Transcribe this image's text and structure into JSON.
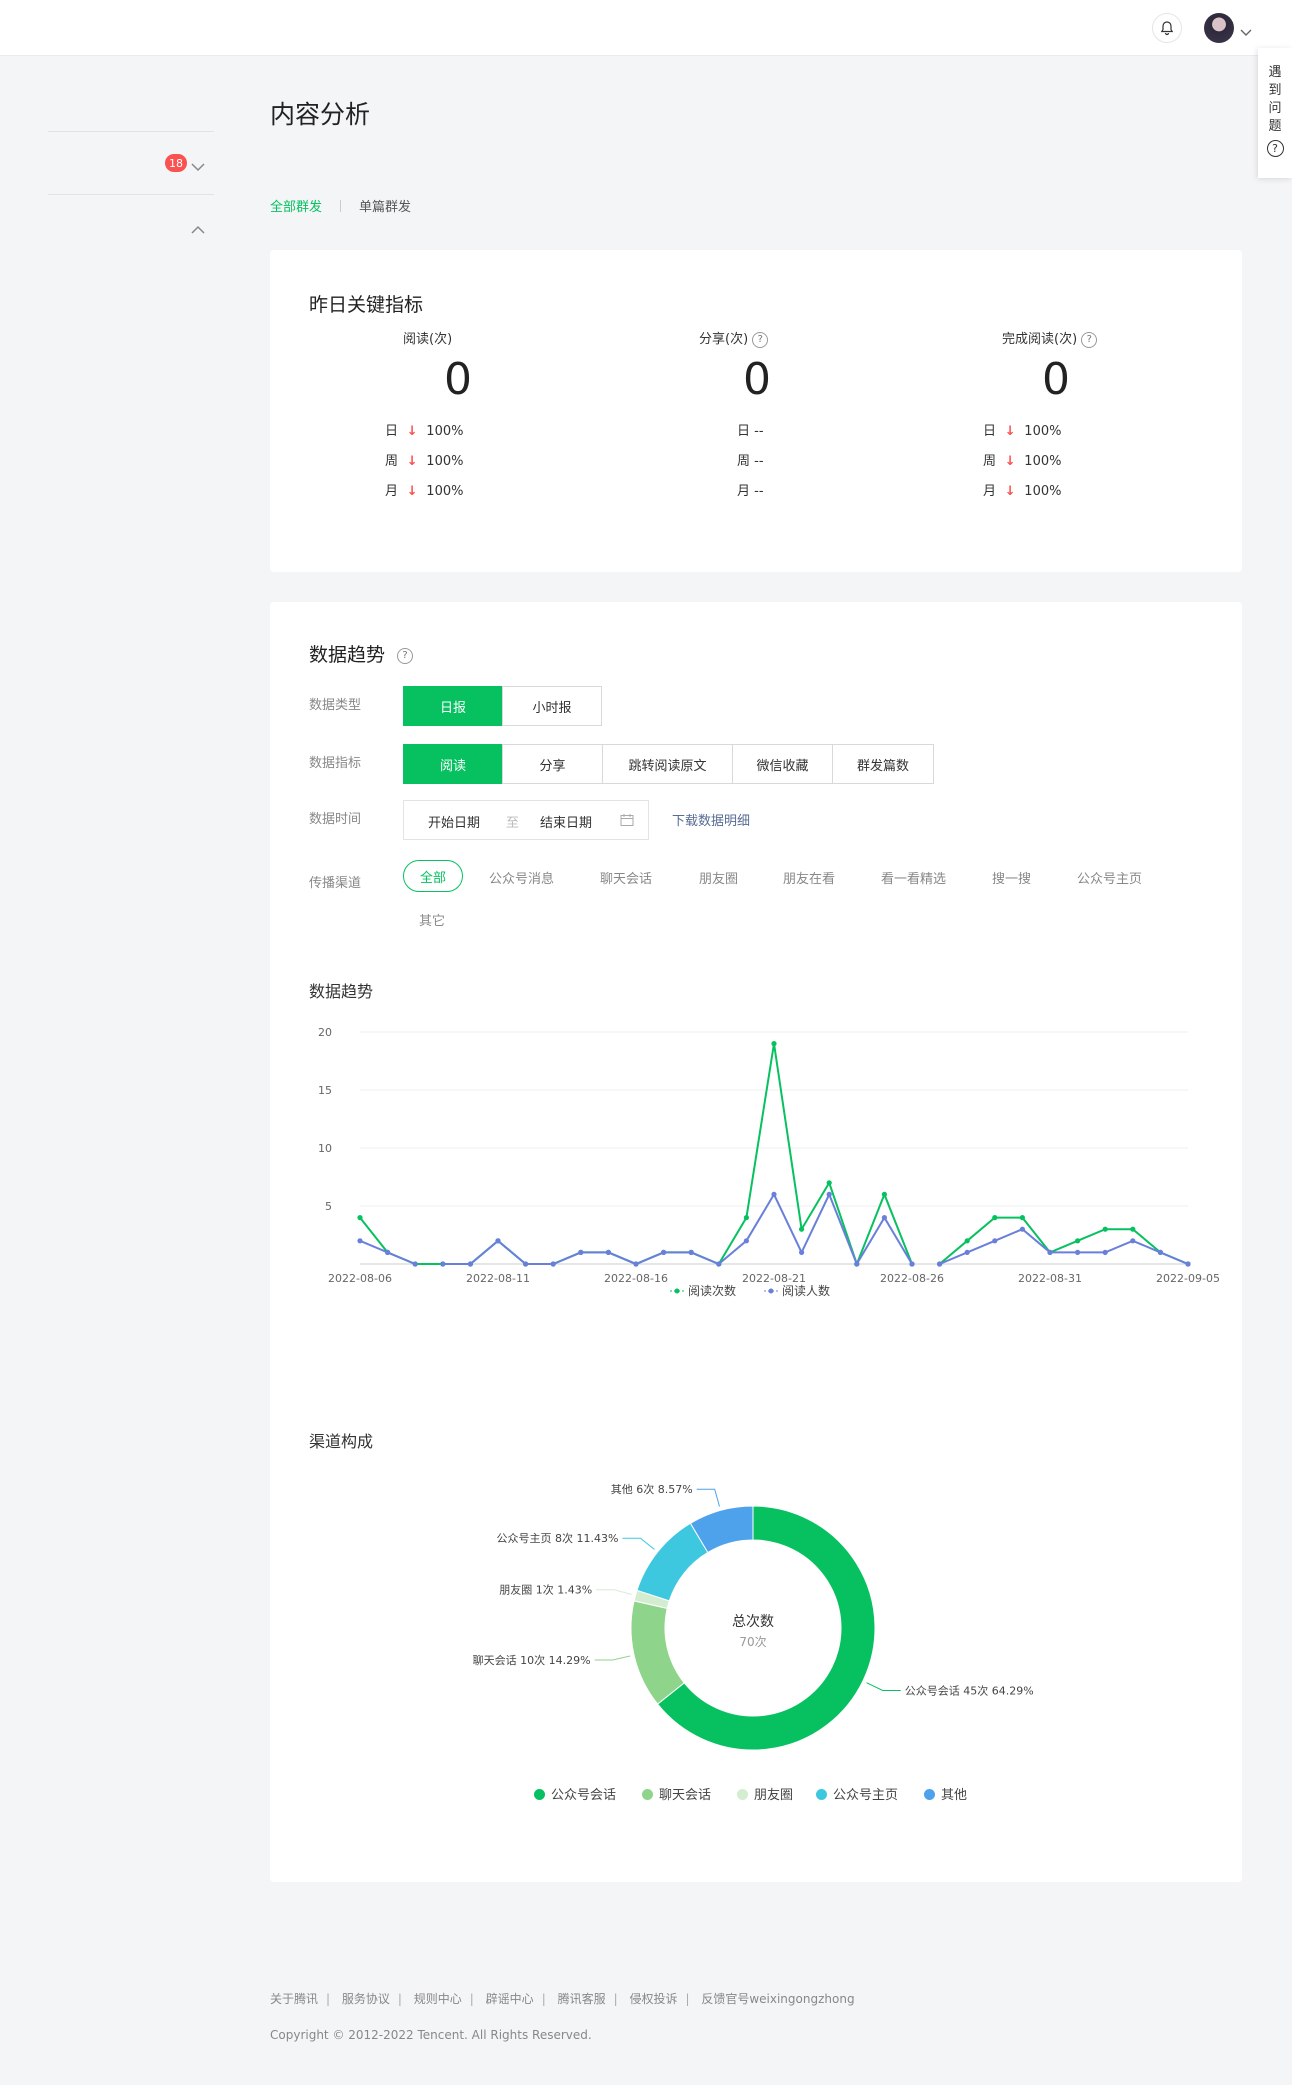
{
  "header": {
    "help_tab": [
      "遇",
      "到",
      "问",
      "题"
    ],
    "help_icon": "question-circle-icon",
    "bell_icon": "bell-icon"
  },
  "sidebar": {
    "badge_count": "18"
  },
  "page": {
    "title": "内容分析",
    "tabs": [
      "全部群发",
      "单篇群发"
    ],
    "active_tab": "全部群发"
  },
  "key_metrics": {
    "title": "昨日关键指标",
    "items": [
      {
        "label": "阅读(次)",
        "value": "0",
        "rows": [
          {
            "period": "日",
            "change": "100%",
            "trend": "down"
          },
          {
            "period": "周",
            "change": "100%",
            "trend": "down"
          },
          {
            "period": "月",
            "change": "100%",
            "trend": "down"
          }
        ]
      },
      {
        "label": "分享(次)",
        "value": "0",
        "rows": [
          {
            "period": "日",
            "change": "--",
            "trend": ""
          },
          {
            "period": "周",
            "change": "--",
            "trend": ""
          },
          {
            "period": "月",
            "change": "--",
            "trend": ""
          }
        ]
      },
      {
        "label": "完成阅读(次)",
        "value": "0",
        "rows": [
          {
            "period": "日",
            "change": "100%",
            "trend": "down"
          },
          {
            "period": "周",
            "change": "100%",
            "trend": "down"
          },
          {
            "period": "月",
            "change": "100%",
            "trend": "down"
          }
        ]
      }
    ]
  },
  "trend": {
    "title": "数据趋势",
    "filters": {
      "type_label": "数据类型",
      "type_options": [
        "日报",
        "小时报"
      ],
      "type_active": "日报",
      "metric_label": "数据指标",
      "metric_options": [
        "阅读",
        "分享",
        "跳转阅读原文",
        "微信收藏",
        "群发篇数"
      ],
      "metric_active": "阅读",
      "time_label": "数据时间",
      "start_placeholder": "开始日期",
      "range_sep": "至",
      "end_placeholder": "结束日期",
      "download": "下载数据明细",
      "channel_label": "传播渠道",
      "channels": [
        "全部",
        "公众号消息",
        "聊天会话",
        "朋友圈",
        "朋友在看",
        "看一看精选",
        "搜一搜",
        "公众号主页",
        "其它"
      ],
      "channel_active": "全部"
    },
    "chart_title": "数据趋势",
    "channel_title": "渠道构成",
    "donut_center_label": "总次数",
    "donut_center_value": "70次"
  },
  "chart_data": [
    {
      "type": "line",
      "title": "数据趋势",
      "x": [
        "2022-08-06",
        "2022-08-07",
        "2022-08-08",
        "2022-08-09",
        "2022-08-10",
        "2022-08-11",
        "2022-08-12",
        "2022-08-13",
        "2022-08-14",
        "2022-08-15",
        "2022-08-16",
        "2022-08-17",
        "2022-08-18",
        "2022-08-19",
        "2022-08-20",
        "2022-08-21",
        "2022-08-22",
        "2022-08-23",
        "2022-08-24",
        "2022-08-25",
        "2022-08-26",
        "2022-08-27",
        "2022-08-28",
        "2022-08-29",
        "2022-08-30",
        "2022-08-31",
        "2022-09-01",
        "2022-09-02",
        "2022-09-03",
        "2022-09-04",
        "2022-09-05"
      ],
      "x_tick_labels": [
        "2022-08-06",
        "2022-08-11",
        "2022-08-16",
        "2022-08-21",
        "2022-08-26",
        "2022-08-31",
        "2022-09-05"
      ],
      "y_ticks": [
        5,
        10,
        15,
        20
      ],
      "ylim": [
        0,
        20
      ],
      "series": [
        {
          "name": "阅读次数",
          "color": "#07c160",
          "values": [
            4,
            1,
            0,
            0,
            0,
            2,
            0,
            0,
            1,
            1,
            0,
            1,
            1,
            0,
            4,
            19,
            3,
            7,
            0,
            6,
            0,
            0,
            2,
            4,
            4,
            1,
            2,
            3,
            3,
            1,
            0
          ],
          "gaps": [
            21
          ]
        },
        {
          "name": "阅读人数",
          "color": "#6a7fdb",
          "values": [
            2,
            1,
            0,
            0,
            0,
            2,
            0,
            0,
            1,
            1,
            0,
            1,
            1,
            0,
            2,
            6,
            1,
            6,
            0,
            4,
            0,
            0,
            1,
            2,
            3,
            1,
            1,
            1,
            2,
            1,
            0
          ],
          "gaps": [
            3,
            21
          ]
        }
      ],
      "grid": true,
      "legend": "bottom"
    },
    {
      "type": "pie",
      "title": "渠道构成",
      "donut": true,
      "slices": [
        {
          "name": "公众号会话",
          "value": 45,
          "label": "公众号会话 45次 64.29%",
          "color": "#07c160"
        },
        {
          "name": "聊天会话",
          "value": 10,
          "label": "聊天会话 10次 14.29%",
          "color": "#8ed58b"
        },
        {
          "name": "朋友圈",
          "value": 1,
          "label": "朋友圈 1次 1.43%",
          "color": "#d4edd0"
        },
        {
          "name": "公众号主页",
          "value": 8,
          "label": "公众号主页 8次 11.43%",
          "color": "#3ec8e0"
        },
        {
          "name": "其他",
          "value": 6,
          "label": "其他 6次 8.57%",
          "color": "#4ea2ec"
        }
      ],
      "legend": "bottom"
    }
  ],
  "footer": {
    "links": [
      "关于腾讯",
      "服务协议",
      "规则中心",
      "辟谣中心",
      "腾讯客服",
      "侵权投诉",
      "反馈官号weixingongzhong"
    ],
    "copyright": "Copyright © 2012-2022 Tencent. All Rights Reserved."
  }
}
